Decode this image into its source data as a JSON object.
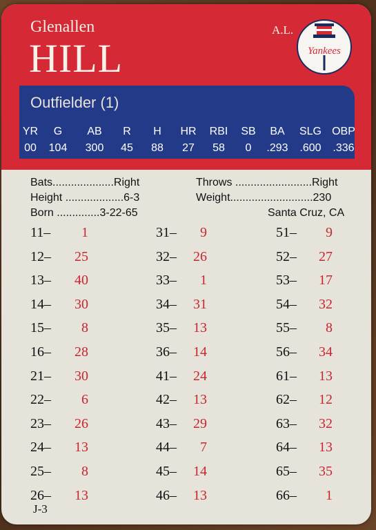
{
  "player": {
    "first_name": "Glenallen",
    "last_name": "HILL",
    "league": "A.L.",
    "position": "Outfielder (1)",
    "logo_text": "Yankees"
  },
  "stats": {
    "headers": [
      "YR",
      "G",
      "AB",
      "R",
      "H",
      "HR",
      "RBI",
      "SB",
      "BA",
      "SLG",
      "OBP"
    ],
    "values": [
      "00",
      "104",
      "300",
      "45",
      "88",
      "27",
      "58",
      "0",
      ".293",
      ".600",
      ".336"
    ]
  },
  "info": {
    "bats": "Bats....................Right",
    "throws": "Throws .........................Right",
    "height": "Height ...................6-3",
    "weight": "Weight...........................230",
    "born": "Born ..............3-22-65",
    "birthplace": "Santa Cruz, CA"
  },
  "results": {
    "col1": [
      [
        "11–",
        "1"
      ],
      [
        "12–",
        "25"
      ],
      [
        "13–",
        "40"
      ],
      [
        "14–",
        "30"
      ],
      [
        "15–",
        "8"
      ],
      [
        "16–",
        "28"
      ],
      [
        "21–",
        "30"
      ],
      [
        "22–",
        "6"
      ],
      [
        "23–",
        "26"
      ],
      [
        "24–",
        "13"
      ],
      [
        "25–",
        "8"
      ],
      [
        "26–",
        "13"
      ]
    ],
    "col2": [
      [
        "31–",
        "9"
      ],
      [
        "32–",
        "26"
      ],
      [
        "33–",
        "1"
      ],
      [
        "34–",
        "31"
      ],
      [
        "35–",
        "13"
      ],
      [
        "36–",
        "14"
      ],
      [
        "41–",
        "24"
      ],
      [
        "42–",
        "13"
      ],
      [
        "43–",
        "29"
      ],
      [
        "44–",
        "7"
      ],
      [
        "45–",
        "14"
      ],
      [
        "46–",
        "13"
      ]
    ],
    "col3": [
      [
        "51–",
        "9"
      ],
      [
        "52–",
        "27"
      ],
      [
        "53–",
        "17"
      ],
      [
        "54–",
        "32"
      ],
      [
        "55–",
        "8"
      ],
      [
        "56–",
        "34"
      ],
      [
        "61–",
        "13"
      ],
      [
        "62–",
        "12"
      ],
      [
        "63–",
        "32"
      ],
      [
        "64–",
        "13"
      ],
      [
        "65–",
        "35"
      ],
      [
        "66–",
        "1"
      ]
    ]
  },
  "card_code": "J-3",
  "colors": {
    "red": "#d52a36",
    "blue": "#233a89",
    "card": "#e6e3db",
    "number_red": "#c8252f"
  }
}
